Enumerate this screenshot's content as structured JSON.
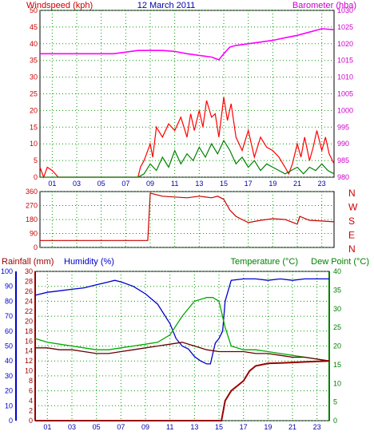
{
  "header": {
    "left_label": "Windspeed (kph)",
    "date": "12 March 2011",
    "right_label": "Barometer (hba)"
  },
  "bottom_header": {
    "rainfall_label": "Rainfall (mm)",
    "humidity_label": "Humidity (%)",
    "temperature_label": "Temperature (°C)",
    "dewpoint_label": "Dew Point (°C)"
  },
  "colors": {
    "wind_gust": "#ff0000",
    "wind_avg": "#008000",
    "barometer": "#ff00ff",
    "direction": "#cc0000",
    "humidity": "#0000cc",
    "temperature": "#00aa00",
    "dewpoint": "#660000",
    "rainfall": "#990000",
    "axis_wind": "#cc0000",
    "axis_baro": "#cc00cc",
    "axis_humidity": "#0000cc",
    "axis_temp": "#008000",
    "title": "#0000aa"
  },
  "chart_data": [
    {
      "type": "line",
      "name": "wind-barometer",
      "x_tick_labels": [
        "01",
        "03",
        "05",
        "07",
        "09",
        "11",
        "13",
        "15",
        "17",
        "19",
        "21",
        "23"
      ],
      "xlim": [
        0,
        24
      ],
      "left_axis": {
        "ylim": [
          0,
          50
        ],
        "ticks": [
          0,
          5,
          10,
          15,
          20,
          25,
          30,
          35,
          40,
          45,
          50
        ]
      },
      "right_axis": {
        "ylim": [
          980,
          1030
        ],
        "ticks": [
          980,
          985,
          990,
          995,
          1000,
          1005,
          1010,
          1015,
          1020,
          1025,
          1030
        ]
      },
      "grid": true,
      "series": [
        {
          "axis": "right",
          "color_key": "barometer",
          "x": [
            0,
            2,
            4,
            6,
            7,
            8,
            9,
            10,
            11,
            12,
            13,
            14,
            14.6,
            15,
            15.5,
            16,
            17,
            18,
            19,
            20,
            21,
            22,
            23,
            24
          ],
          "values": [
            1017,
            1017,
            1017,
            1017,
            1017.5,
            1018,
            1018,
            1018,
            1017.7,
            1017,
            1016.5,
            1016,
            1015.2,
            1017,
            1019,
            1019.5,
            1020,
            1020.5,
            1021,
            1021.8,
            1022.5,
            1023.5,
            1024.5,
            1024.2
          ]
        },
        {
          "axis": "left",
          "color_key": "wind_gust",
          "x": [
            0,
            0.3,
            0.6,
            1,
            1.5,
            8,
            8.2,
            8.5,
            9,
            9.2,
            9.5,
            10,
            10.5,
            11,
            11.5,
            12,
            12.3,
            12.6,
            13,
            13.3,
            13.6,
            14,
            14.3,
            14.6,
            15,
            15.3,
            15.6,
            16,
            16.5,
            17,
            17.5,
            18,
            18.5,
            19,
            19.5,
            20,
            20.3,
            20.6,
            21,
            21.3,
            21.6,
            22,
            22.3,
            22.6,
            23,
            23.3,
            23.6,
            24
          ],
          "values": [
            3,
            0,
            3,
            2,
            0,
            0,
            3,
            5,
            10,
            6,
            15,
            12,
            16,
            14,
            18,
            12,
            19,
            14,
            20,
            15,
            23,
            18,
            19,
            12,
            24,
            17,
            22,
            12,
            8,
            14,
            6,
            12,
            9,
            8,
            6,
            3,
            1,
            4,
            10,
            6,
            12,
            5,
            9,
            14,
            8,
            12,
            7,
            4
          ]
        },
        {
          "axis": "left",
          "color_key": "wind_avg",
          "x": [
            0,
            8,
            8.5,
            9,
            9.5,
            10,
            10.5,
            11,
            11.5,
            12,
            12.5,
            13,
            13.5,
            14,
            14.5,
            15,
            15.5,
            16,
            16.5,
            17,
            17.5,
            18,
            18.5,
            19,
            19.5,
            20,
            20.5,
            21,
            21.5,
            22,
            22.5,
            23,
            23.5,
            24
          ],
          "values": [
            0,
            0,
            1,
            4,
            2,
            6,
            3,
            8,
            4,
            7,
            5,
            9,
            6,
            10,
            7,
            11,
            8,
            4,
            6,
            3,
            5,
            2,
            4,
            3,
            2,
            1,
            2,
            3,
            1,
            3,
            2,
            4,
            2,
            1
          ]
        }
      ]
    },
    {
      "type": "line",
      "name": "wind-direction",
      "x_tick_labels": [],
      "xlim": [
        0,
        24
      ],
      "left_axis": {
        "ylim": [
          0,
          360
        ],
        "ticks": [
          0,
          90,
          180,
          270,
          360
        ]
      },
      "right_tick_labels": [
        "N",
        "W",
        "S",
        "E",
        "N"
      ],
      "grid": true,
      "series": [
        {
          "color_key": "direction",
          "x": [
            0,
            8.7,
            8.8,
            9,
            9.5,
            10,
            11,
            12,
            13,
            14,
            14.5,
            15,
            15.5,
            16,
            17,
            18,
            19,
            20,
            21,
            21.2,
            22,
            23,
            24
          ],
          "values": [
            45,
            45,
            45,
            350,
            340,
            330,
            325,
            320,
            330,
            320,
            330,
            310,
            240,
            200,
            160,
            175,
            185,
            180,
            150,
            200,
            175,
            170,
            165
          ]
        }
      ]
    },
    {
      "type": "line",
      "name": "temperature-humidity-rain",
      "x_tick_labels": [
        "01",
        "03",
        "05",
        "07",
        "09",
        "11",
        "13",
        "15",
        "17",
        "19",
        "21",
        "23"
      ],
      "xlim": [
        0,
        24
      ],
      "humidity_axis": {
        "ylim": [
          0,
          100
        ],
        "ticks": [
          0,
          10,
          20,
          30,
          40,
          50,
          60,
          70,
          80,
          90,
          100
        ]
      },
      "rainfall_axis": {
        "ylim": [
          0,
          30
        ],
        "ticks": [
          0,
          2,
          4,
          6,
          8,
          10,
          12,
          14,
          16,
          18,
          20,
          22,
          24,
          26,
          28,
          30
        ]
      },
      "temperature_axis": {
        "ylim": [
          0,
          40
        ],
        "ticks": [
          0,
          5,
          10,
          15,
          20,
          25,
          30,
          35,
          40
        ]
      },
      "grid": true,
      "series": [
        {
          "axis": "humidity",
          "color_key": "humidity",
          "x": [
            0,
            1,
            2,
            3,
            4,
            5,
            6,
            6.5,
            7,
            8,
            9,
            10,
            11,
            11.5,
            12,
            12.5,
            13,
            13.5,
            14,
            14.3,
            14.5,
            14.7,
            15,
            15.3,
            15.5,
            16,
            17,
            18,
            19,
            20,
            21,
            22,
            23,
            24
          ],
          "values": [
            84,
            86,
            87,
            88,
            89,
            91,
            93,
            94,
            93,
            90,
            85,
            78,
            65,
            55,
            50,
            48,
            43,
            40,
            38,
            38,
            45,
            52,
            55,
            60,
            80,
            94,
            95,
            95,
            94,
            95,
            94,
            95,
            95,
            95
          ]
        },
        {
          "axis": "temperature",
          "color_key": "temperature",
          "x": [
            0,
            1,
            2,
            3,
            4,
            5,
            6,
            7,
            8,
            9,
            10,
            11,
            12,
            13,
            14,
            14.5,
            15,
            15.5,
            16,
            17,
            18,
            19,
            20,
            21,
            22,
            23,
            24
          ],
          "values": [
            22,
            21,
            20.5,
            20,
            19.5,
            19,
            19,
            19.5,
            20,
            20.5,
            21,
            23,
            28,
            32,
            33,
            33,
            32,
            25,
            20,
            19,
            19,
            18.5,
            18,
            17.5,
            17,
            16.5,
            16
          ]
        },
        {
          "axis": "temperature",
          "color_key": "dewpoint",
          "x": [
            0,
            1,
            2,
            3,
            4,
            5,
            6,
            7,
            8,
            9,
            10,
            11,
            12,
            13,
            14,
            15,
            16,
            17,
            18,
            19,
            20,
            21,
            22,
            23,
            24
          ],
          "values": [
            19.5,
            19.5,
            19,
            19,
            18.5,
            18,
            18,
            18.5,
            19,
            19.5,
            20,
            20.5,
            21,
            20,
            19,
            18.5,
            18.5,
            18.5,
            18,
            18,
            17.5,
            17,
            17,
            16.5,
            16
          ]
        },
        {
          "axis": "rainfall",
          "color_key": "rainfall",
          "x": [
            0,
            5,
            10,
            15,
            15.2,
            15.5,
            16,
            16.5,
            17,
            17.5,
            18,
            19,
            20,
            21,
            22,
            23,
            24
          ],
          "values": [
            0,
            0,
            0,
            0,
            0,
            4,
            6,
            7,
            8,
            10,
            11,
            11.5,
            11.6,
            11.7,
            11.8,
            11.9,
            12
          ]
        }
      ]
    }
  ]
}
